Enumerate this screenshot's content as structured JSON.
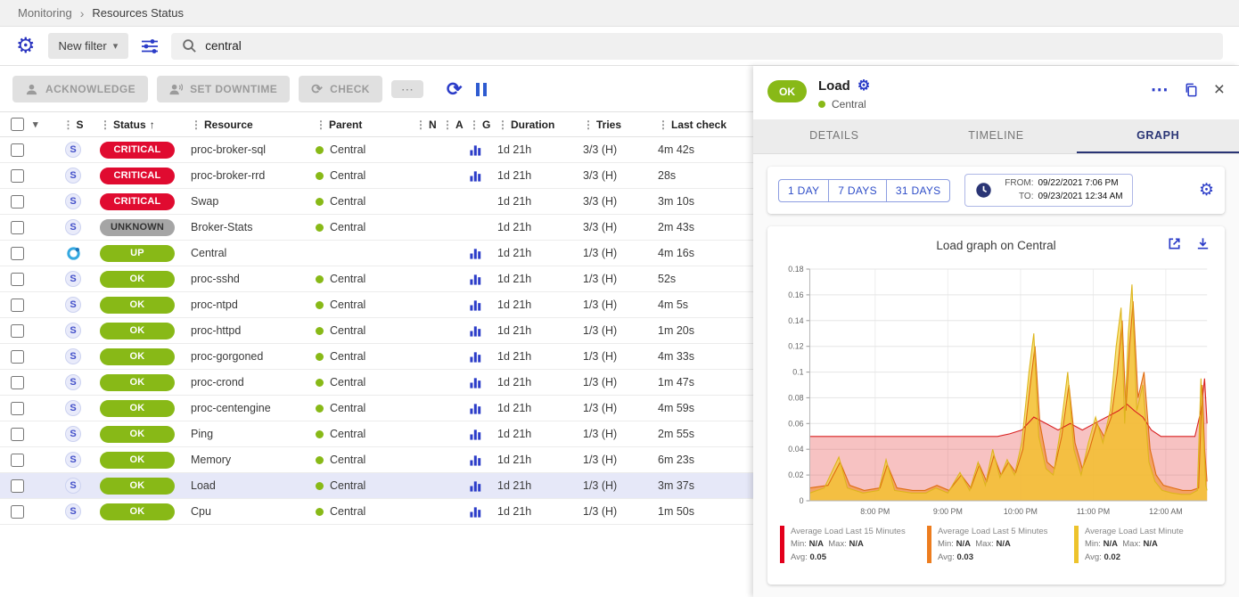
{
  "breadcrumb": {
    "items": [
      "Monitoring",
      "Resources Status"
    ],
    "separator": "›"
  },
  "icons": {
    "gear": "⚙",
    "more": "⋯",
    "close": "×",
    "refresh": "⟳",
    "check": "⟳",
    "caret_down": "▾",
    "sort_asc": "↑",
    "drag": "⋮"
  },
  "filter_bar": {
    "new_filter_label": "New filter",
    "search_value": "central"
  },
  "toolbar": {
    "acknowledge_label": "ACKNOWLEDGE",
    "set_downtime_label": "SET DOWNTIME",
    "check_label": "CHECK"
  },
  "status_colors": {
    "CRITICAL": {
      "bg": "#e00b30",
      "fg": "#ffffff"
    },
    "UNKNOWN": {
      "bg": "#a5a5a5",
      "fg": "#333333"
    },
    "UP": {
      "bg": "#88b917",
      "fg": "#ffffff"
    },
    "OK": {
      "bg": "#88b917",
      "fg": "#ffffff"
    }
  },
  "table": {
    "columns": [
      {
        "key": "s",
        "label": "S"
      },
      {
        "key": "status",
        "label": "Status",
        "sorted": true
      },
      {
        "key": "res",
        "label": "Resource"
      },
      {
        "key": "parent",
        "label": "Parent"
      },
      {
        "key": "n",
        "label": "N"
      },
      {
        "key": "a",
        "label": "A"
      },
      {
        "key": "g",
        "label": "G"
      },
      {
        "key": "dur",
        "label": "Duration"
      },
      {
        "key": "tries",
        "label": "Tries"
      },
      {
        "key": "last",
        "label": "Last check"
      }
    ],
    "rows": [
      {
        "status": "CRITICAL",
        "kind": "service",
        "resource": "proc-broker-sql",
        "parent": "Central",
        "graph": true,
        "duration": "1d 21h",
        "tries": "3/3 (H)",
        "last_check": "4m 42s"
      },
      {
        "status": "CRITICAL",
        "kind": "service",
        "resource": "proc-broker-rrd",
        "parent": "Central",
        "graph": true,
        "duration": "1d 21h",
        "tries": "3/3 (H)",
        "last_check": "28s"
      },
      {
        "status": "CRITICAL",
        "kind": "service",
        "resource": "Swap",
        "parent": "Central",
        "graph": false,
        "duration": "1d 21h",
        "tries": "3/3 (H)",
        "last_check": "3m 10s"
      },
      {
        "status": "UNKNOWN",
        "kind": "service",
        "resource": "Broker-Stats",
        "parent": "Central",
        "graph": false,
        "duration": "1d 21h",
        "tries": "3/3 (H)",
        "last_check": "2m 43s"
      },
      {
        "status": "UP",
        "kind": "host",
        "resource": "Central",
        "parent": "",
        "graph": true,
        "duration": "1d 21h",
        "tries": "1/3 (H)",
        "last_check": "4m 16s"
      },
      {
        "status": "OK",
        "kind": "service",
        "resource": "proc-sshd",
        "parent": "Central",
        "graph": true,
        "duration": "1d 21h",
        "tries": "1/3 (H)",
        "last_check": "52s"
      },
      {
        "status": "OK",
        "kind": "service",
        "resource": "proc-ntpd",
        "parent": "Central",
        "graph": true,
        "duration": "1d 21h",
        "tries": "1/3 (H)",
        "last_check": "4m 5s"
      },
      {
        "status": "OK",
        "kind": "service",
        "resource": "proc-httpd",
        "parent": "Central",
        "graph": true,
        "duration": "1d 21h",
        "tries": "1/3 (H)",
        "last_check": "1m 20s"
      },
      {
        "status": "OK",
        "kind": "service",
        "resource": "proc-gorgoned",
        "parent": "Central",
        "graph": true,
        "duration": "1d 21h",
        "tries": "1/3 (H)",
        "last_check": "4m 33s"
      },
      {
        "status": "OK",
        "kind": "service",
        "resource": "proc-crond",
        "parent": "Central",
        "graph": true,
        "duration": "1d 21h",
        "tries": "1/3 (H)",
        "last_check": "1m 47s"
      },
      {
        "status": "OK",
        "kind": "service",
        "resource": "proc-centengine",
        "parent": "Central",
        "graph": true,
        "duration": "1d 21h",
        "tries": "1/3 (H)",
        "last_check": "4m 59s"
      },
      {
        "status": "OK",
        "kind": "service",
        "resource": "Ping",
        "parent": "Central",
        "graph": true,
        "duration": "1d 21h",
        "tries": "1/3 (H)",
        "last_check": "2m 55s"
      },
      {
        "status": "OK",
        "kind": "service",
        "resource": "Memory",
        "parent": "Central",
        "graph": true,
        "duration": "1d 21h",
        "tries": "1/3 (H)",
        "last_check": "6m 23s"
      },
      {
        "status": "OK",
        "kind": "service",
        "resource": "Load",
        "parent": "Central",
        "graph": true,
        "duration": "1d 21h",
        "tries": "1/3 (H)",
        "last_check": "3m 37s",
        "selected": true
      },
      {
        "status": "OK",
        "kind": "service",
        "resource": "Cpu",
        "parent": "Central",
        "graph": true,
        "duration": "1d 21h",
        "tries": "1/3 (H)",
        "last_check": "1m 50s"
      }
    ]
  },
  "panel": {
    "status": "OK",
    "title": "Load",
    "parent": "Central",
    "tabs": [
      "DETAILS",
      "TIMELINE",
      "GRAPH"
    ],
    "active_tab": "GRAPH",
    "range_buttons": [
      "1 DAY",
      "7 DAYS",
      "31 DAYS"
    ],
    "from_label": "FROM:",
    "from_value": "09/22/2021 7:06 PM",
    "to_label": "TO:",
    "to_value": "09/23/2021 12:34 AM",
    "graph_title": "Load graph on Central"
  },
  "chart_data": {
    "type": "area",
    "title": "Load graph on Central",
    "ylim": [
      0,
      0.18
    ],
    "xlim_minutes": [
      0,
      328
    ],
    "grid": true,
    "y_ticks": [
      0,
      0.02,
      0.04,
      0.06,
      0.08,
      0.1,
      0.12,
      0.14,
      0.16,
      0.18
    ],
    "x_ticks": [
      {
        "t": 54,
        "label": "8:00 PM"
      },
      {
        "t": 114,
        "label": "9:00 PM"
      },
      {
        "t": 174,
        "label": "10:00 PM"
      },
      {
        "t": 234,
        "label": "11:00 PM"
      },
      {
        "t": 294,
        "label": "12:00 AM"
      }
    ],
    "legend_labels": {
      "min": "Min:",
      "max": "Max:",
      "avg": "Avg:"
    },
    "series": [
      {
        "name": "Average Load Last 15 Minutes",
        "color": "#d92020",
        "fill": "rgba(233,80,80,0.35)",
        "points": [
          [
            0,
            0.05
          ],
          [
            20,
            0.05
          ],
          [
            40,
            0.05
          ],
          [
            60,
            0.05
          ],
          [
            80,
            0.05
          ],
          [
            100,
            0.05
          ],
          [
            120,
            0.05
          ],
          [
            140,
            0.05
          ],
          [
            155,
            0.05
          ],
          [
            165,
            0.052
          ],
          [
            175,
            0.055
          ],
          [
            185,
            0.065
          ],
          [
            195,
            0.06
          ],
          [
            205,
            0.055
          ],
          [
            215,
            0.06
          ],
          [
            225,
            0.055
          ],
          [
            235,
            0.06
          ],
          [
            245,
            0.065
          ],
          [
            255,
            0.07
          ],
          [
            262,
            0.075
          ],
          [
            268,
            0.07
          ],
          [
            275,
            0.065
          ],
          [
            282,
            0.055
          ],
          [
            290,
            0.05
          ],
          [
            300,
            0.05
          ],
          [
            310,
            0.05
          ],
          [
            318,
            0.05
          ],
          [
            323,
            0.07
          ],
          [
            326,
            0.095
          ],
          [
            328,
            0.06
          ]
        ]
      },
      {
        "name": "Average Load Last 5 Minutes",
        "color": "#df6b0e",
        "fill": "rgba(240,138,35,0.6)",
        "points": [
          [
            0,
            0.01
          ],
          [
            15,
            0.012
          ],
          [
            25,
            0.03
          ],
          [
            33,
            0.012
          ],
          [
            45,
            0.008
          ],
          [
            58,
            0.01
          ],
          [
            64,
            0.028
          ],
          [
            72,
            0.01
          ],
          [
            85,
            0.008
          ],
          [
            95,
            0.008
          ],
          [
            105,
            0.012
          ],
          [
            115,
            0.008
          ],
          [
            125,
            0.02
          ],
          [
            133,
            0.01
          ],
          [
            140,
            0.028
          ],
          [
            146,
            0.015
          ],
          [
            152,
            0.035
          ],
          [
            158,
            0.02
          ],
          [
            164,
            0.03
          ],
          [
            170,
            0.022
          ],
          [
            176,
            0.04
          ],
          [
            182,
            0.09
          ],
          [
            186,
            0.12
          ],
          [
            190,
            0.06
          ],
          [
            196,
            0.03
          ],
          [
            202,
            0.025
          ],
          [
            208,
            0.05
          ],
          [
            214,
            0.09
          ],
          [
            219,
            0.045
          ],
          [
            225,
            0.025
          ],
          [
            231,
            0.04
          ],
          [
            237,
            0.06
          ],
          [
            243,
            0.05
          ],
          [
            249,
            0.065
          ],
          [
            254,
            0.1
          ],
          [
            258,
            0.14
          ],
          [
            261,
            0.07
          ],
          [
            264,
            0.12
          ],
          [
            267,
            0.155
          ],
          [
            271,
            0.08
          ],
          [
            276,
            0.1
          ],
          [
            281,
            0.04
          ],
          [
            286,
            0.02
          ],
          [
            292,
            0.012
          ],
          [
            300,
            0.01
          ],
          [
            308,
            0.008
          ],
          [
            315,
            0.008
          ],
          [
            321,
            0.01
          ],
          [
            324,
            0.09
          ],
          [
            326,
            0.04
          ],
          [
            328,
            0.015
          ]
        ]
      },
      {
        "name": "Average Load Last Minute",
        "color": "#ddb51c",
        "fill": "rgba(244,208,49,0.65)",
        "points": [
          [
            0,
            0.006
          ],
          [
            12,
            0.01
          ],
          [
            24,
            0.034
          ],
          [
            31,
            0.01
          ],
          [
            44,
            0.006
          ],
          [
            57,
            0.008
          ],
          [
            63,
            0.032
          ],
          [
            70,
            0.008
          ],
          [
            84,
            0.006
          ],
          [
            96,
            0.006
          ],
          [
            104,
            0.01
          ],
          [
            114,
            0.006
          ],
          [
            124,
            0.022
          ],
          [
            132,
            0.008
          ],
          [
            139,
            0.03
          ],
          [
            145,
            0.012
          ],
          [
            151,
            0.04
          ],
          [
            157,
            0.018
          ],
          [
            163,
            0.032
          ],
          [
            169,
            0.02
          ],
          [
            175,
            0.045
          ],
          [
            181,
            0.1
          ],
          [
            185,
            0.13
          ],
          [
            189,
            0.05
          ],
          [
            195,
            0.025
          ],
          [
            201,
            0.02
          ],
          [
            207,
            0.055
          ],
          [
            213,
            0.1
          ],
          [
            218,
            0.04
          ],
          [
            224,
            0.02
          ],
          [
            230,
            0.045
          ],
          [
            236,
            0.065
          ],
          [
            242,
            0.045
          ],
          [
            248,
            0.07
          ],
          [
            253,
            0.12
          ],
          [
            257,
            0.15
          ],
          [
            260,
            0.06
          ],
          [
            263,
            0.13
          ],
          [
            266,
            0.168
          ],
          [
            270,
            0.07
          ],
          [
            275,
            0.09
          ],
          [
            280,
            0.03
          ],
          [
            285,
            0.015
          ],
          [
            291,
            0.008
          ],
          [
            299,
            0.006
          ],
          [
            307,
            0.005
          ],
          [
            314,
            0.005
          ],
          [
            320,
            0.008
          ],
          [
            323,
            0.095
          ],
          [
            325,
            0.05
          ],
          [
            327,
            0.012
          ],
          [
            328,
            0.008
          ]
        ]
      }
    ],
    "legend": [
      {
        "name": "Average Load Last 15 Minutes",
        "color": "#e3001c",
        "min": "N/A",
        "max": "N/A",
        "avg": "0.05"
      },
      {
        "name": "Average Load Last 5 Minutes",
        "color": "#ed7d1f",
        "min": "N/A",
        "max": "N/A",
        "avg": "0.03"
      },
      {
        "name": "Average Load Last Minute",
        "color": "#edc32c",
        "min": "N/A",
        "max": "N/A",
        "avg": "0.02"
      }
    ]
  }
}
